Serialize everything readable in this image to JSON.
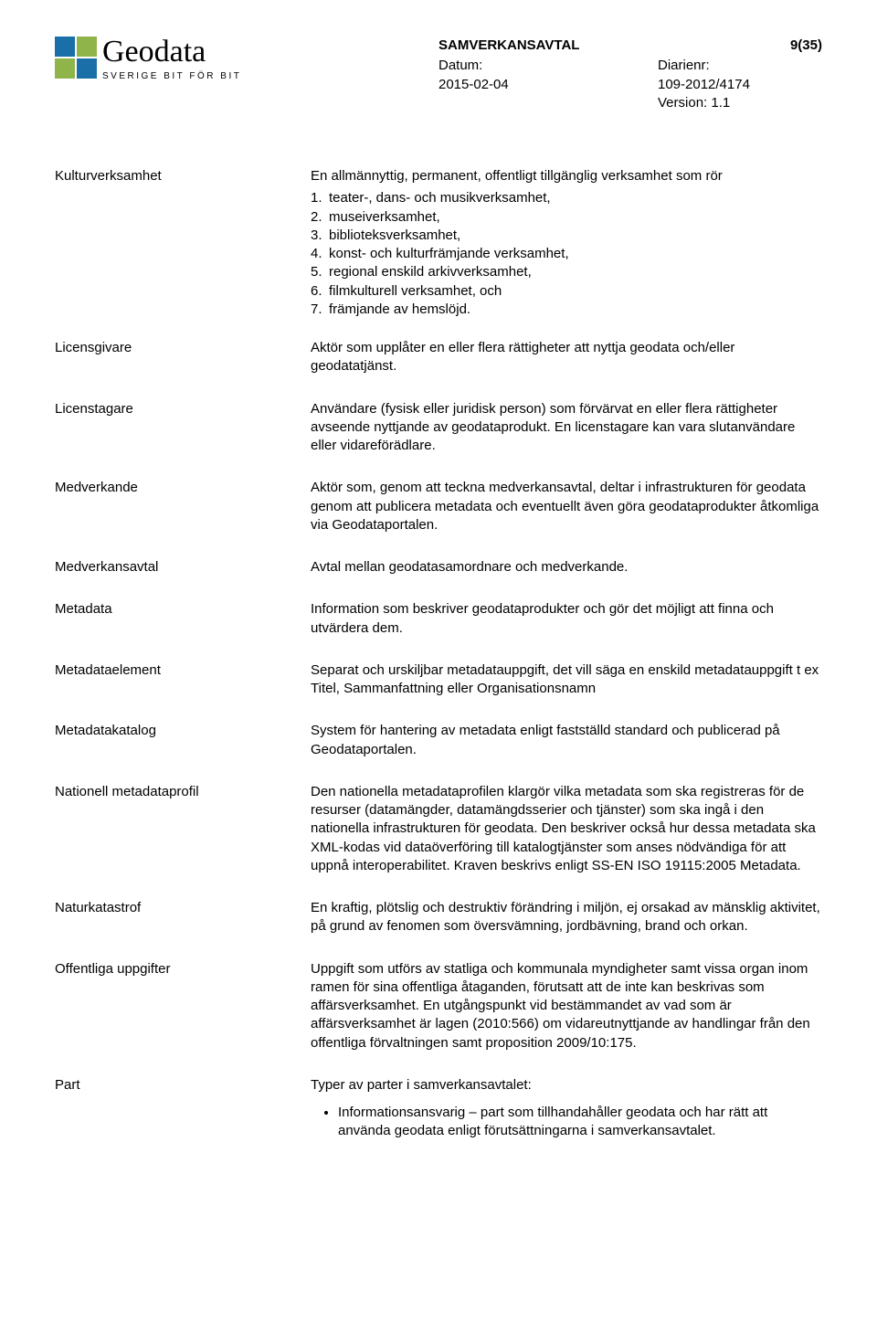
{
  "logo": {
    "word": "Geodata",
    "tagline": "SVERIGE BIT FÖR BIT",
    "colors": {
      "tl": "#1a6fa8",
      "tr": "#8fb44a",
      "bl": "#8fb44a",
      "br": "#1a6fa8"
    }
  },
  "header": {
    "doc_type": "SAMVERKANSAVTAL",
    "page_num": "9(35)",
    "left": {
      "date_label": "Datum:",
      "date_value": "2015-02-04"
    },
    "right": {
      "diarienr_label": "Diarienr:",
      "diarienr_value": "109-2012/4174",
      "version": "Version: 1.1"
    }
  },
  "terms": {
    "kulturverksamhet": {
      "label": "Kulturverksamhet",
      "intro": "En allmännyttig, permanent, offentligt tillgänglig verksamhet som rör",
      "items": [
        "teater-, dans- och musikverksamhet,",
        "museiverksamhet,",
        "biblioteksverksamhet,",
        "konst- och kulturfrämjande verksamhet,",
        "regional enskild arkivverksamhet,",
        "filmkulturell verksamhet, och",
        "främjande av hemslöjd."
      ]
    },
    "licensgivare": {
      "label": "Licensgivare",
      "text": "Aktör som upplåter en eller flera rättigheter att nyttja geodata och/eller geodatatjänst."
    },
    "licenstagare": {
      "label": "Licenstagare",
      "text": "Användare (fysisk eller juridisk person) som förvärvat en eller flera rättigheter avseende nyttjande av geodataprodukt. En licenstagare kan vara slutanvändare eller vidareförädlare."
    },
    "medverkande": {
      "label": "Medverkande",
      "text": "Aktör som, genom att teckna medverkansavtal, deltar i infrastrukturen för geodata genom att publicera metadata och eventuellt även göra geodataprodukter åtkomliga via Geodataportalen."
    },
    "medverkansavtal": {
      "label": "Medverkansavtal",
      "text": "Avtal mellan geodatasamordnare och medverkande."
    },
    "metadata": {
      "label": "Metadata",
      "text": "Information som beskriver geodataprodukter och gör det möjligt att finna och utvärdera dem."
    },
    "metadataelement": {
      "label": "Metadataelement",
      "text": "Separat och urskiljbar metadatauppgift, det vill säga en enskild metadatauppgift t ex Titel, Sammanfattning eller Organisationsnamn"
    },
    "metadatakatalog": {
      "label": "Metadatakatalog",
      "text": "System för hantering av metadata enligt fastställd standard och publicerad på Geodataportalen."
    },
    "nationell": {
      "label": "Nationell metadataprofil",
      "text": "Den nationella metadataprofilen klargör vilka metadata som ska registreras för de resurser (datamängder, datamängdsserier och tjänster) som ska ingå i den nationella infrastrukturen för geodata. Den beskriver också hur dessa metadata ska XML-kodas vid dataöverföring till katalogtjänster som anses nödvändiga för att uppnå interoperabilitet. Kraven beskrivs enligt SS-EN ISO 19115:2005 Metadata."
    },
    "naturkatastrof": {
      "label": "Naturkatastrof",
      "text": "En kraftig, plötslig och destruktiv förändring i miljön, ej orsakad av mänsklig aktivitet, på grund av fenomen som översvämning, jordbävning, brand och orkan."
    },
    "offentliga": {
      "label": "Offentliga uppgifter",
      "text": "Uppgift som utförs av statliga och kommunala myndigheter samt vissa organ inom ramen för sina offentliga åtaganden, förutsatt att de inte kan beskrivas som affärsverksamhet. En utgångspunkt vid bestämmandet av vad som är affärsverksamhet är lagen (2010:566) om vidareutnyttjande av handlingar från den offentliga förvaltningen samt proposition 2009/10:175."
    },
    "part": {
      "label": "Part",
      "intro": "Typer av parter i samverkansavtalet:",
      "bullet": "Informationsansvarig – part som tillhandahåller geodata och har rätt att använda geodata enligt förutsättningarna i samverkansavtalet."
    }
  }
}
